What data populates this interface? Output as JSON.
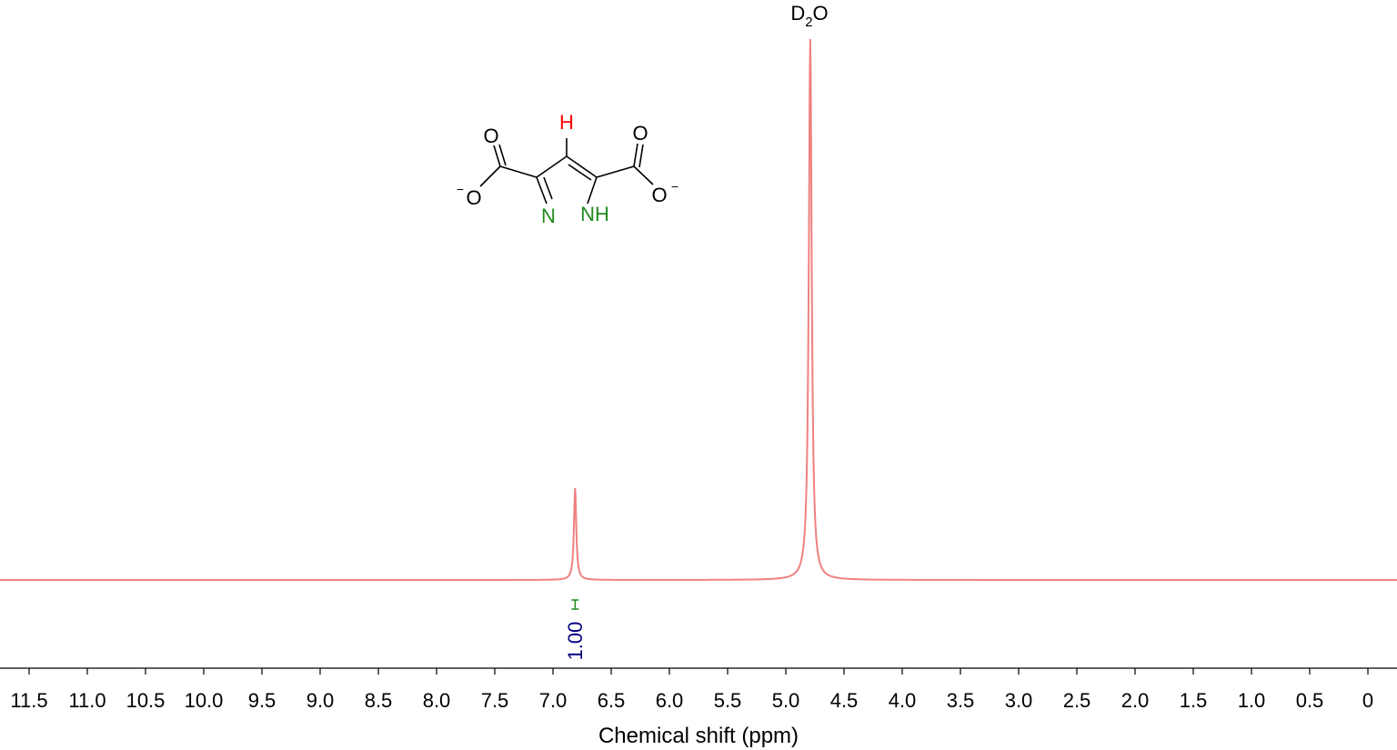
{
  "chart_data": {
    "type": "line",
    "xlabel": "Chemical shift (ppm)",
    "ylabel": "",
    "xlim": [
      11.75,
      -0.25
    ],
    "x_reversed": true,
    "xticks": [
      11.5,
      11.0,
      10.5,
      10.0,
      9.5,
      9.0,
      8.5,
      8.0,
      7.5,
      7.0,
      6.5,
      6.0,
      5.5,
      5.0,
      4.5,
      4.0,
      3.5,
      3.0,
      2.5,
      2.0,
      1.5,
      1.0,
      0.5,
      0
    ],
    "xtick_labels": [
      "11.5",
      "11.0",
      "10.5",
      "10.0",
      "9.5",
      "9.0",
      "8.5",
      "8.0",
      "7.5",
      "7.0",
      "6.5",
      "6.0",
      "5.5",
      "5.0",
      "4.5",
      "4.0",
      "3.5",
      "3.0",
      "2.5",
      "2.0",
      "1.5",
      "1.0",
      "0.5",
      "0"
    ],
    "grid": false,
    "legend": "none",
    "series": [
      {
        "color": "#f08080",
        "peaks": [
          {
            "shift": 6.81,
            "relative_intensity": 0.17
          },
          {
            "shift": 4.79,
            "relative_intensity": 1.0
          }
        ]
      }
    ],
    "annotations": [
      {
        "text_main": "D",
        "text_sub": "2",
        "text_tail": "O",
        "at_shift": 4.79
      }
    ],
    "integrals": [
      {
        "shift": 6.81,
        "value": "1.00",
        "label_color": "#000080",
        "bracket_color": "#228b22"
      }
    ]
  },
  "structure": {
    "atoms": {
      "h_top": "H",
      "o_left_top": "O",
      "o_left_bottom": "O",
      "o_right_top": "O",
      "o_right_bottom": "O",
      "n_left": "N",
      "nh_right": "NH",
      "charge_left": "−",
      "charge_right": "−"
    },
    "colors": {
      "h": "#ff0000",
      "n": "#228b22",
      "o": "#000000",
      "bond": "#000000"
    }
  }
}
